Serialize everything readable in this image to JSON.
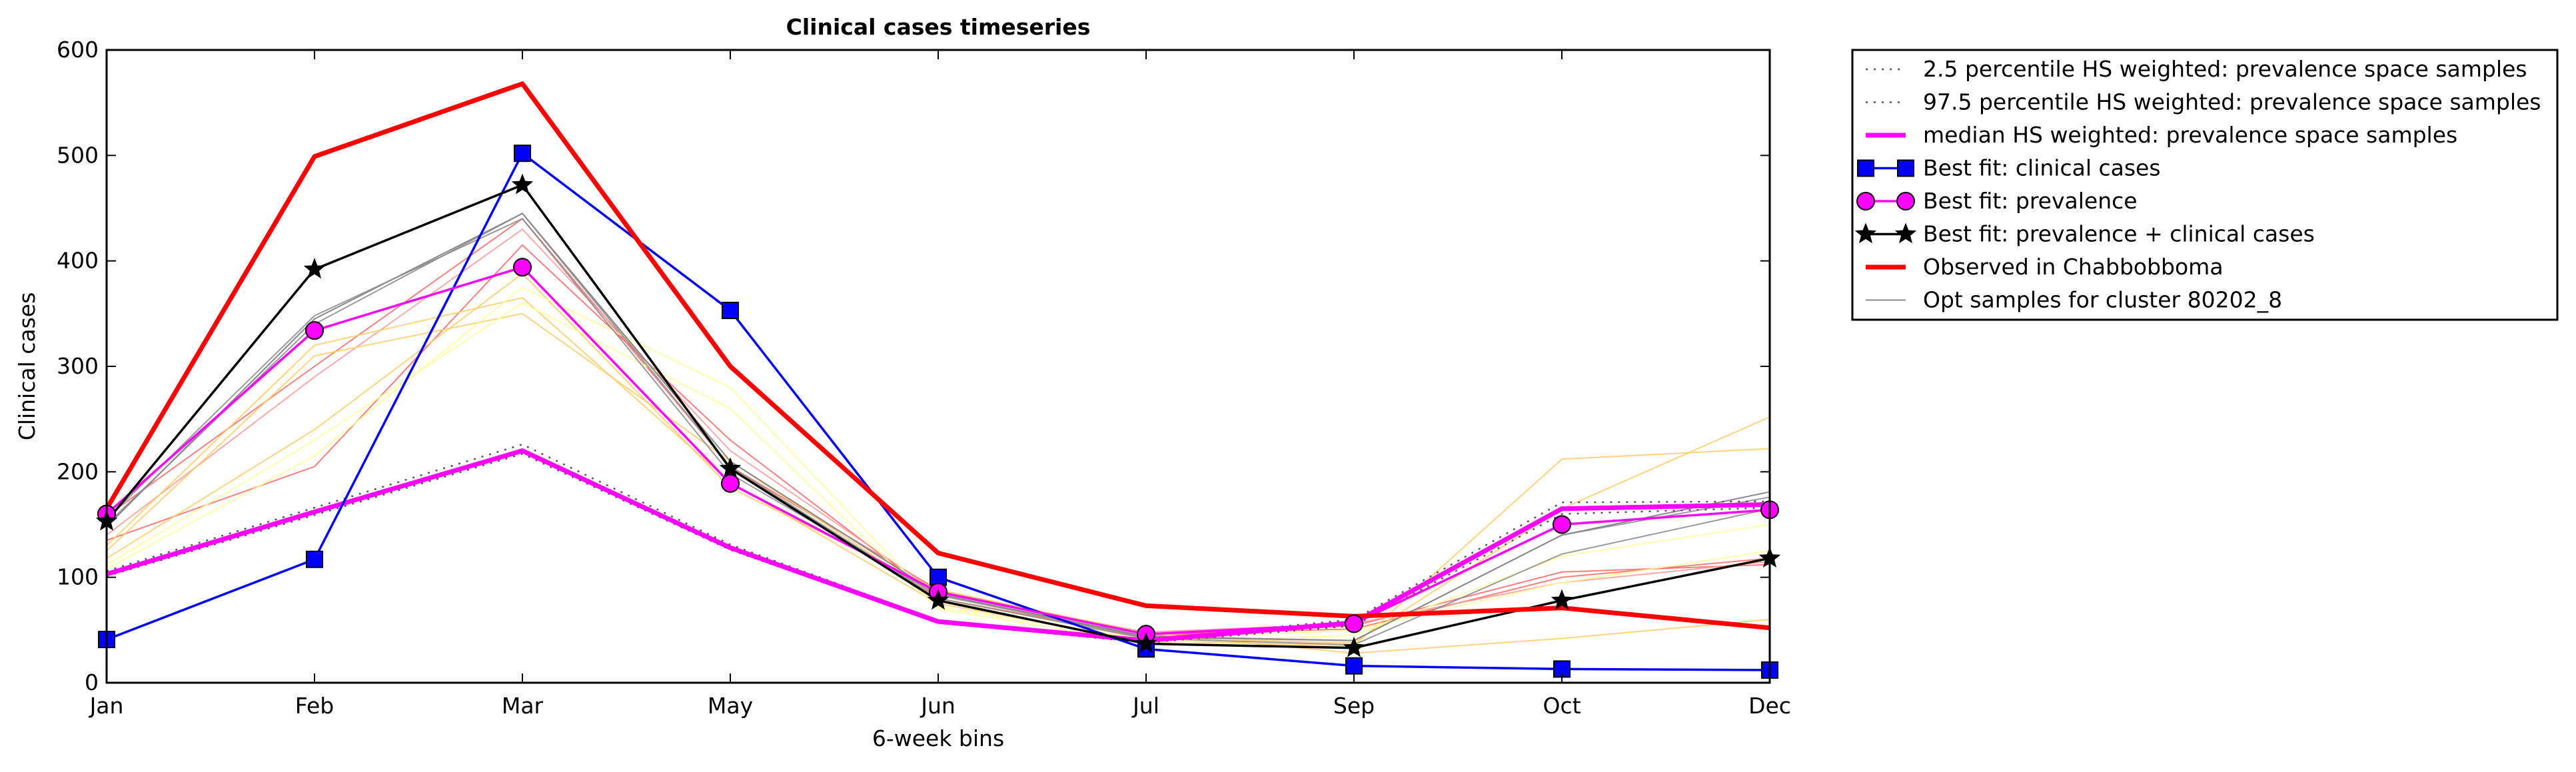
{
  "chart_data": {
    "type": "line",
    "title": "Clinical cases timeseries",
    "xlabel": "6-week bins",
    "ylabel": "Clinical cases",
    "categories": [
      "Jan",
      "Feb",
      "Mar",
      "May",
      "Jun",
      "Jul",
      "Sep",
      "Oct",
      "Dec"
    ],
    "ylim": [
      0,
      600
    ],
    "yticks": [
      "0",
      "100",
      "200",
      "300",
      "400",
      "500",
      "600"
    ],
    "grid": false,
    "legend_position": "outside-top-right",
    "series": [
      {
        "name": "2.5 percentile HS weighted: prevalence space samples",
        "color": "#555555",
        "style": "dotted",
        "values": [
          101,
          159,
          217,
          126,
          57,
          38,
          54,
          160,
          166
        ]
      },
      {
        "name": "97.5 percentile HS weighted: prevalence space samples",
        "color": "#555555",
        "style": "dotted",
        "values": [
          106,
          166,
          226,
          131,
          59,
          41,
          60,
          171,
          172
        ]
      },
      {
        "name": "median HS weighted: prevalence space samples",
        "color": "#ff00ff",
        "style": "solid-thick",
        "values": [
          103,
          162,
          220,
          128,
          58,
          40,
          57,
          165,
          169
        ]
      },
      {
        "name": "Best fit: clinical cases",
        "color": "#0000ff",
        "marker": "square",
        "values": [
          41,
          117,
          502,
          353,
          100,
          32,
          16,
          13,
          12
        ]
      },
      {
        "name": "Best fit: prevalence",
        "color": "#ff00ff",
        "marker": "circle",
        "values": [
          160,
          334,
          394,
          189,
          86,
          46,
          56,
          150,
          164
        ]
      },
      {
        "name": "Best fit: prevalence + clinical cases",
        "color": "#000000",
        "marker": "star",
        "values": [
          153,
          392,
          472,
          203,
          78,
          37,
          33,
          78,
          118
        ]
      },
      {
        "name": "Observed in Chabbobboma",
        "color": "#ff0000",
        "style": "solid-thick",
        "values": [
          165,
          499,
          568,
          300,
          123,
          73,
          63,
          71,
          52
        ]
      },
      {
        "name": "Opt samples for cluster 80202_8",
        "color": "#888888",
        "style": "solid-thin",
        "values": [
          148,
          345,
          445,
          210,
          84,
          44,
          40,
          140,
          181
        ]
      }
    ],
    "unlabeled_samples": [
      {
        "color": "#ff6666",
        "values": [
          135,
          205,
          415,
          230,
          80,
          44,
          54,
          105,
          112
        ]
      },
      {
        "color": "#ff6666",
        "values": [
          158,
          300,
          440,
          205,
          88,
          46,
          51,
          100,
          118
        ]
      },
      {
        "color": "#ff9999",
        "values": [
          140,
          290,
          430,
          220,
          85,
          48,
          56,
          95,
          115
        ]
      },
      {
        "color": "#ffcc66",
        "values": [
          130,
          320,
          365,
          190,
          75,
          40,
          35,
          212,
          222
        ]
      },
      {
        "color": "#ffcc66",
        "values": [
          125,
          310,
          350,
          210,
          80,
          42,
          38,
          165,
          252
        ]
      },
      {
        "color": "#ffcc66",
        "values": [
          118,
          240,
          388,
          185,
          88,
          47,
          28,
          42,
          60
        ]
      },
      {
        "color": "#ffff99",
        "values": [
          112,
          230,
          360,
          260,
          70,
          38,
          45,
          120,
          150
        ]
      },
      {
        "color": "#ffff99",
        "values": [
          108,
          215,
          375,
          280,
          72,
          41,
          50,
          95,
          125
        ]
      },
      {
        "color": "#888888",
        "values": [
          150,
          340,
          445,
          205,
          80,
          42,
          36,
          122,
          165
        ]
      },
      {
        "color": "#888888",
        "values": [
          155,
          348,
          440,
          198,
          83,
          43,
          40,
          140,
          176
        ]
      }
    ]
  }
}
